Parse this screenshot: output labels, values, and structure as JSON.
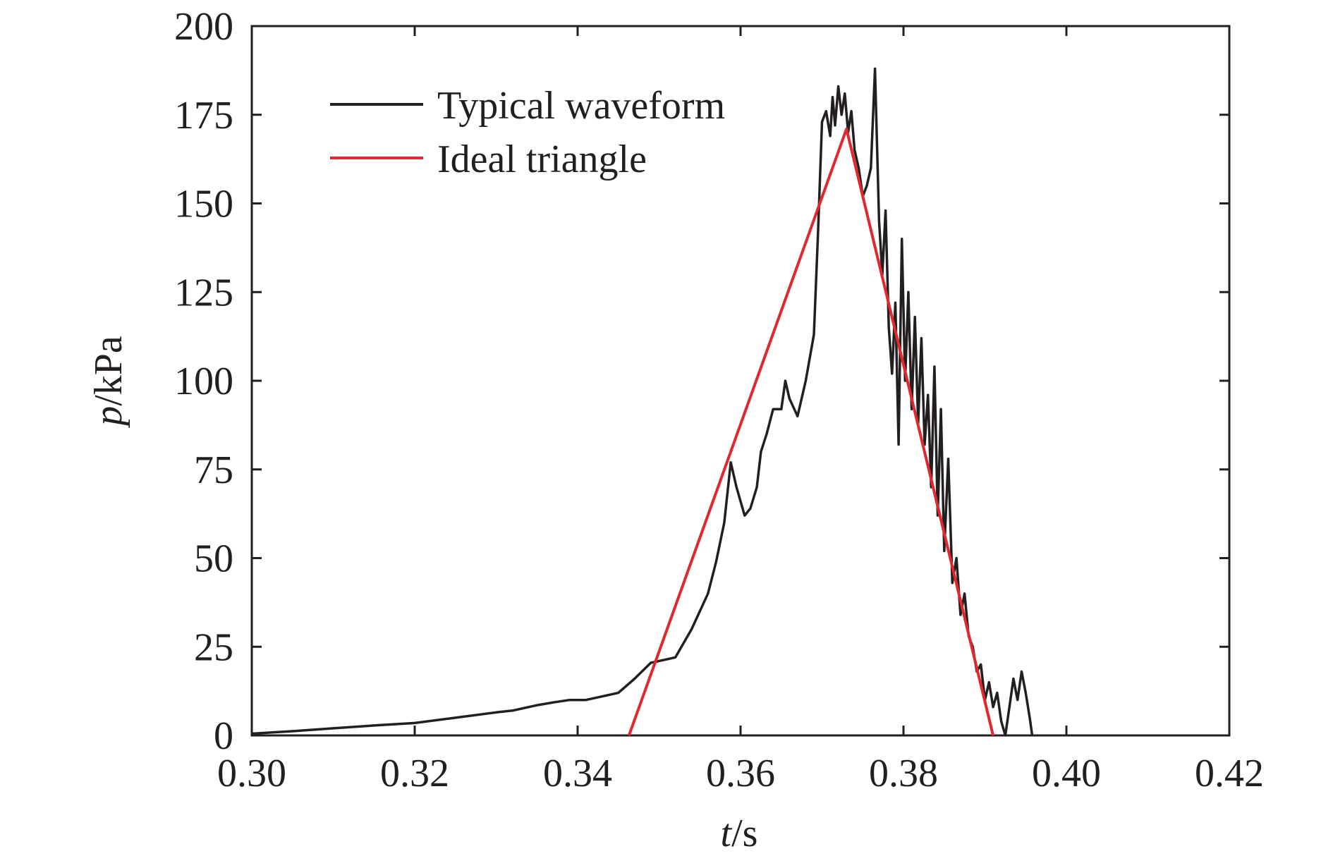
{
  "chart_data": {
    "type": "line",
    "xlabel": {
      "var": "t",
      "unit": "/s"
    },
    "ylabel": {
      "var": "p",
      "unit": "/kPa"
    },
    "xlim": [
      0.3,
      0.42
    ],
    "ylim": [
      0,
      200
    ],
    "x_ticks": [
      "0.30",
      "0.32",
      "0.34",
      "0.36",
      "0.38",
      "0.40",
      "0.42"
    ],
    "y_ticks": [
      "0",
      "25",
      "50",
      "75",
      "100",
      "125",
      "150",
      "175",
      "200"
    ],
    "grid": false,
    "legend_position": "top-left",
    "series": [
      {
        "name": "Typical waveform",
        "color": "#231f20",
        "x": [
          0.3,
          0.305,
          0.31,
          0.315,
          0.32,
          0.325,
          0.33,
          0.332,
          0.335,
          0.337,
          0.339,
          0.34,
          0.341,
          0.343,
          0.345,
          0.347,
          0.349,
          0.351,
          0.352,
          0.354,
          0.356,
          0.357,
          0.358,
          0.3588,
          0.3595,
          0.3605,
          0.3612,
          0.362,
          0.3625,
          0.3632,
          0.364,
          0.365,
          0.3655,
          0.366,
          0.367,
          0.368,
          0.369,
          0.3695,
          0.37,
          0.3705,
          0.371,
          0.3713,
          0.3716,
          0.372,
          0.3724,
          0.3728,
          0.3732,
          0.3736,
          0.374,
          0.3745,
          0.375,
          0.3755,
          0.376,
          0.3765,
          0.377,
          0.3774,
          0.3778,
          0.3782,
          0.3786,
          0.379,
          0.3794,
          0.3798,
          0.3802,
          0.3806,
          0.381,
          0.3814,
          0.3818,
          0.3822,
          0.3826,
          0.383,
          0.3834,
          0.3838,
          0.3842,
          0.3846,
          0.385,
          0.3855,
          0.386,
          0.3865,
          0.387,
          0.3875,
          0.388,
          0.3885,
          0.389,
          0.3895,
          0.39,
          0.3905,
          0.391,
          0.3915,
          0.392,
          0.3925,
          0.393,
          0.3935,
          0.394,
          0.3945,
          0.395,
          0.3955,
          0.3958
        ],
        "y": [
          0.5,
          1.2,
          2,
          2.8,
          3.5,
          5,
          6.5,
          7,
          8.5,
          9.3,
          10,
          10,
          10,
          11,
          12,
          16,
          20.5,
          21.5,
          22,
          30,
          40,
          49,
          60,
          77,
          70,
          62,
          64,
          70,
          80,
          85,
          92,
          92,
          100,
          95,
          90,
          100,
          113,
          141,
          173,
          176,
          169,
          180,
          172,
          183,
          175,
          181,
          170,
          176,
          165,
          160,
          152,
          155,
          160,
          188,
          145,
          130,
          148,
          115,
          102,
          122,
          82,
          140,
          100,
          125,
          92,
          118,
          88,
          112,
          82,
          96,
          70,
          104,
          62,
          92,
          52,
          78,
          43,
          50,
          34,
          40,
          28,
          25,
          18,
          20,
          10,
          15,
          8,
          12,
          4,
          0,
          8,
          16,
          10,
          18,
          12,
          5,
          0
        ]
      },
      {
        "name": "Ideal triangle",
        "color": "#e2282e",
        "x": [
          0.3463,
          0.373,
          0.391
        ],
        "y": [
          0,
          171,
          0
        ]
      }
    ]
  }
}
